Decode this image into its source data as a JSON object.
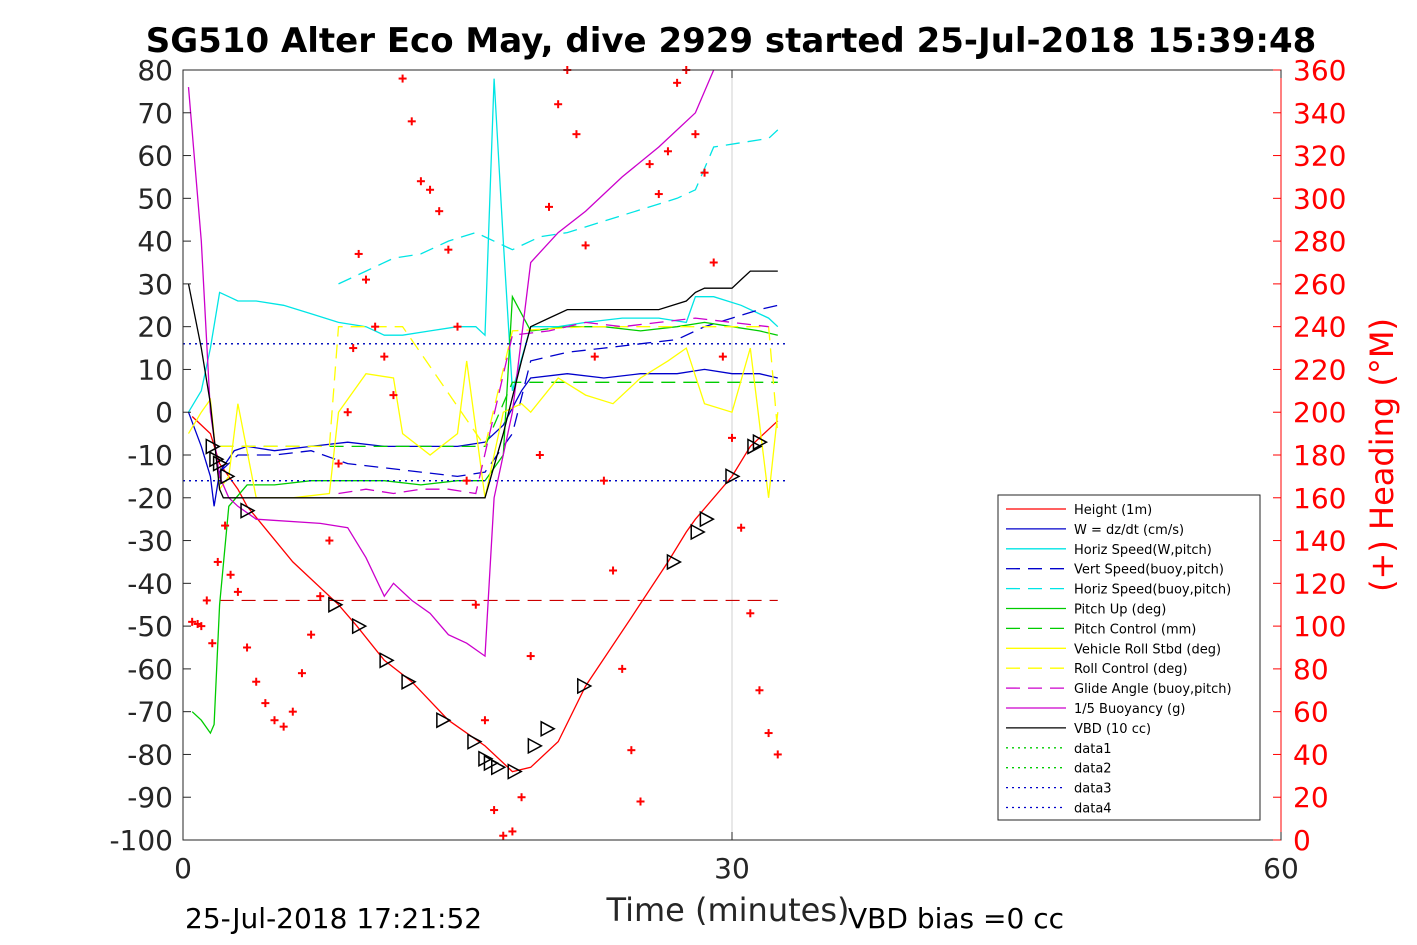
{
  "chart_data": {
    "type": "line",
    "title": "SG510 Alter Eco May, dive 2929 started 25-Jul-2018 15:39:48",
    "xlabel": "Time (minutes)",
    "ylabel_right": "(+) Heading (°M)",
    "xlim": [
      0,
      60
    ],
    "ylim": [
      -100,
      80
    ],
    "ylim_right": [
      0,
      360
    ],
    "x_ticks": [
      "0",
      "30",
      "60"
    ],
    "y_ticks": [
      "80",
      "70",
      "60",
      "50",
      "40",
      "30",
      "20",
      "10",
      "0",
      "-10",
      "-20",
      "-30",
      "-40",
      "-50",
      "-60",
      "-70",
      "-80",
      "-90",
      "-100"
    ],
    "y_ticks_right": [
      "360",
      "340",
      "320",
      "300",
      "280",
      "260",
      "240",
      "220",
      "200",
      "180",
      "160",
      "140",
      "120",
      "100",
      "80",
      "60",
      "40",
      "20",
      "0"
    ],
    "grid": "x-only at 30",
    "legend_position": "bottom-right",
    "footer_left": "25-Jul-2018 17:21:52",
    "footer_right": "VBD bias =0 cc",
    "legend": [
      {
        "name": "Height (1m)",
        "color": "#ff0000",
        "style": "solid"
      },
      {
        "name": "W = dz/dt (cm/s)",
        "color": "#0000cc",
        "style": "solid"
      },
      {
        "name": "Horiz Speed(W,pitch)",
        "color": "#00e5e5",
        "style": "solid"
      },
      {
        "name": "Vert Speed(buoy,pitch)",
        "color": "#0000cc",
        "style": "dashed"
      },
      {
        "name": "Horiz Speed(buoy,pitch)",
        "color": "#00e5e5",
        "style": "dashed"
      },
      {
        "name": "Pitch Up (deg)",
        "color": "#00cc00",
        "style": "solid"
      },
      {
        "name": "Pitch Control (mm)",
        "color": "#00cc00",
        "style": "dashed"
      },
      {
        "name": "Vehicle Roll Stbd (deg)",
        "color": "#ffff00",
        "style": "solid"
      },
      {
        "name": "Roll Control (deg)",
        "color": "#ffff00",
        "style": "dashed"
      },
      {
        "name": "Glide Angle (buoy,pitch)",
        "color": "#cc00cc",
        "style": "dashed"
      },
      {
        "name": "1/5 Buoyancy (g)",
        "color": "#cc00cc",
        "style": "solid"
      },
      {
        "name": "VBD (10 cc)",
        "color": "#000000",
        "style": "solid"
      },
      {
        "name": "data1",
        "color": "#00cc00",
        "style": "dotted"
      },
      {
        "name": "data2",
        "color": "#00cc00",
        "style": "dotted"
      },
      {
        "name": "data3",
        "color": "#0000cc",
        "style": "dotted"
      },
      {
        "name": "data4",
        "color": "#0000cc",
        "style": "dotted"
      }
    ],
    "series": [
      {
        "name": "Height (1m)",
        "color": "#ff0000",
        "style": "solid",
        "x": [
          0.5,
          1.5,
          2.0,
          3.0,
          3.5,
          6.0,
          8.5,
          9.5,
          11.0,
          12.5,
          14.5,
          16.5,
          17.5,
          18.0,
          19.0,
          20.5,
          22.0,
          24.5,
          26.5,
          27.5,
          28.0,
          30.0,
          31.0,
          32.5
        ],
        "y": [
          -1,
          -5,
          -12,
          -18,
          -22,
          -35,
          -45,
          -50,
          -58,
          -63,
          -72,
          -78,
          -82,
          -84,
          -83,
          -77,
          -64,
          -48,
          -35,
          -28,
          -25,
          -15,
          -8,
          -2
        ]
      },
      {
        "name": "W = dz/dt (cm/s)",
        "color": "#0000cc",
        "style": "solid",
        "x": [
          0.3,
          1.0,
          1.5,
          1.7,
          2.0,
          2.8,
          3.5,
          5.0,
          7.0,
          9.0,
          11.0,
          13.0,
          15.0,
          16.5,
          17.5,
          18.5,
          19.0,
          21.0,
          23.0,
          25.0,
          27.0,
          28.5,
          30.0,
          31.5,
          32.5
        ],
        "y": [
          0,
          -8,
          -15,
          -22,
          -14,
          -9,
          -8,
          -9,
          -8,
          -7,
          -8,
          -8,
          -8,
          -7,
          -3,
          5,
          8,
          9,
          8,
          9,
          9,
          10,
          9,
          9,
          8
        ]
      },
      {
        "name": "Horiz Speed(W,pitch)",
        "color": "#00e5e5",
        "style": "solid",
        "x": [
          0.3,
          1.0,
          1.5,
          2.0,
          2.5,
          3.0,
          4.0,
          5.5,
          7.0,
          8.5,
          10.0,
          11.0,
          12.0,
          13.5,
          15.0,
          16.0,
          16.5,
          17.0,
          17.5,
          18.0,
          19.0,
          20.5,
          22.0,
          24.0,
          26.0,
          27.5,
          28.0,
          29.0,
          30.5,
          32.0,
          32.5
        ],
        "y": [
          0,
          5,
          15,
          28,
          27,
          26,
          26,
          25,
          23,
          21,
          20,
          18,
          18,
          19,
          20,
          20,
          18,
          78,
          40,
          5,
          20,
          20,
          21,
          22,
          22,
          21,
          27,
          27,
          25,
          22,
          20
        ]
      },
      {
        "name": "Vert Speed(buoy,pitch)",
        "color": "#0000cc",
        "style": "dashed",
        "x": [
          2.0,
          3.0,
          5.0,
          7.0,
          9.0,
          11.0,
          13.0,
          15.0,
          16.5,
          18.0,
          19.0,
          21.0,
          23.0,
          25.0,
          27.0,
          28.5,
          30.0,
          31.5,
          32.5
        ],
        "y": [
          -14,
          -10,
          -10,
          -9,
          -12,
          -13,
          -14,
          -15,
          -14,
          -5,
          12,
          14,
          15,
          16,
          17,
          20,
          22,
          24,
          25
        ]
      },
      {
        "name": "Horiz Speed(buoy,pitch)",
        "color": "#00e5e5",
        "style": "dashed",
        "x": [
          8.5,
          10.0,
          11.5,
          13.0,
          14.5,
          16.0,
          18.0,
          19.5,
          21.0,
          22.5,
          24.0,
          25.5,
          27.0,
          28.0,
          29.0,
          30.5,
          32.0,
          32.5
        ],
        "y": [
          30,
          33,
          36,
          37,
          40,
          42,
          38,
          41,
          42,
          44,
          46,
          48,
          50,
          52,
          62,
          63,
          64,
          66
        ]
      },
      {
        "name": "Pitch Up (deg)",
        "color": "#00cc00",
        "style": "solid",
        "x": [
          0.5,
          1.0,
          1.5,
          1.7,
          2.0,
          2.5,
          3.5,
          5.0,
          7.0,
          9.0,
          11.0,
          13.0,
          15.0,
          16.5,
          17.5,
          18.0,
          19.0,
          21.0,
          23.0,
          25.0,
          27.0,
          28.5,
          30.0,
          31.5,
          32.5
        ],
        "y": [
          -70,
          -72,
          -75,
          -73,
          -45,
          -22,
          -17,
          -17,
          -16,
          -16,
          -16,
          -17,
          -16,
          -16,
          -10,
          27,
          19,
          20,
          20,
          19,
          20,
          21,
          20,
          19,
          18
        ]
      },
      {
        "name": "Pitch Control (mm)",
        "color": "#00cc00",
        "style": "dashed",
        "x": [
          2.0,
          4.0,
          8.0,
          12.0,
          16.5,
          18.0,
          20.0,
          24.0,
          28.0,
          32.5
        ],
        "y": [
          -8,
          -8,
          -8,
          -8,
          -8,
          7,
          7,
          7,
          7,
          7
        ]
      },
      {
        "name": "Vehicle Roll Stbd (deg)",
        "color": "#ffff00",
        "style": "solid",
        "x": [
          0.3,
          1.0,
          1.5,
          2.0,
          2.5,
          3.0,
          4.0,
          6.0,
          8.0,
          8.5,
          10.0,
          11.5,
          12.0,
          13.5,
          15.0,
          15.5,
          16.5,
          17.0,
          17.5,
          18.5,
          19.0,
          20.5,
          22.0,
          23.5,
          25.0,
          26.5,
          27.5,
          28.5,
          30.0,
          31.0,
          32.0,
          32.5
        ],
        "y": [
          -5,
          0,
          3,
          -18,
          -15,
          2,
          -20,
          -20,
          -19,
          0,
          9,
          8,
          -5,
          -10,
          -5,
          12,
          -20,
          -10,
          0,
          2,
          0,
          8,
          4,
          2,
          8,
          12,
          15,
          2,
          0,
          15,
          -20,
          0
        ]
      },
      {
        "name": "Roll Control (deg)",
        "color": "#ffff00",
        "style": "dashed",
        "x": [
          2.0,
          8.0,
          8.5,
          12.0,
          16.5,
          18.0,
          22.0,
          26.0,
          28.0,
          32.0,
          32.5
        ],
        "y": [
          -8,
          -8,
          20,
          20,
          -8,
          19,
          20,
          20,
          20,
          20,
          -5
        ]
      },
      {
        "name": "Glide Angle (buoy,pitch)",
        "color": "#cc00cc",
        "style": "dashed",
        "x": [
          8.5,
          10.0,
          11.5,
          13.0,
          14.5,
          16.0,
          18.0,
          20.0,
          22.0,
          24.0,
          26.0,
          28.0,
          30.0,
          32.0
        ],
        "y": [
          -19,
          -18,
          -19,
          -18,
          -18,
          -19,
          18,
          19,
          21,
          20,
          21,
          22,
          21,
          20
        ]
      },
      {
        "name": "1/5 Buoyancy (g)",
        "color": "#cc00cc",
        "style": "solid",
        "x": [
          0.3,
          1.0,
          1.5,
          2.0,
          2.5,
          3.0,
          4.0,
          7.5,
          9.0,
          10.0,
          11.0,
          11.5,
          12.5,
          13.5,
          14.5,
          15.5,
          16.5,
          17.0,
          18.0,
          19.0,
          20.5,
          22.0,
          24.0,
          26.0,
          28.0,
          29.0
        ],
        "y": [
          76,
          40,
          0,
          -15,
          -20,
          -22,
          -25,
          -26,
          -27,
          -34,
          -43,
          -40,
          -44,
          -47,
          -52,
          -54,
          -57,
          -20,
          0,
          35,
          42,
          47,
          55,
          62,
          70,
          80
        ]
      },
      {
        "name": "VBD (10 cc)",
        "color": "#000000",
        "style": "solid",
        "x": [
          0.3,
          1.0,
          1.5,
          1.8,
          2.0,
          2.2,
          3.0,
          5.0,
          7.0,
          9.0,
          11.0,
          13.0,
          15.0,
          16.5,
          17.5,
          18.5,
          19.0,
          20.0,
          21.0,
          22.0,
          24.0,
          26.0,
          27.5,
          28.0,
          28.5,
          30.0,
          30.5,
          31.0,
          32.5
        ],
        "y": [
          30,
          15,
          2,
          -10,
          -18,
          -20,
          -20,
          -20,
          -20,
          -20,
          -20,
          -20,
          -20,
          -20,
          -5,
          12,
          20,
          22,
          24,
          24,
          24,
          24,
          26,
          28,
          29,
          29,
          31,
          33,
          33
        ]
      },
      {
        "name": "data1",
        "color": "#00cc00",
        "style": "dotted",
        "x": [
          0,
          33
        ],
        "y": [
          16,
          16
        ]
      },
      {
        "name": "data2",
        "color": "#00cc00",
        "style": "dotted",
        "x": [
          0,
          33
        ],
        "y": [
          -16,
          -16
        ]
      },
      {
        "name": "data3",
        "color": "#0000cc",
        "style": "dotted",
        "x": [
          0,
          33
        ],
        "y": [
          16,
          16
        ]
      },
      {
        "name": "data4",
        "color": "#0000cc",
        "style": "dotted",
        "x": [
          0,
          33
        ],
        "y": [
          -16,
          -16
        ]
      }
    ],
    "reference_lines": [
      {
        "color": "#cc0000",
        "style": "dashed",
        "x": [
          2.0,
          32.5
        ],
        "y": [
          -44,
          -44
        ]
      }
    ],
    "heading_points": {
      "name": "(+) Heading (°M)",
      "color": "#ff0000",
      "x": [
        0.5,
        0.8,
        1.0,
        1.3,
        1.6,
        1.9,
        2.3,
        2.6,
        3.0,
        3.5,
        4.0,
        4.5,
        5.0,
        5.5,
        6.0,
        6.5,
        7.0,
        7.5,
        8.0,
        8.5,
        9.0,
        9.3,
        9.6,
        10.0,
        10.5,
        11.0,
        11.5,
        12.0,
        12.5,
        13.0,
        13.5,
        14.0,
        14.5,
        15.0,
        15.5,
        16.0,
        16.5,
        17.0,
        17.5,
        18.0,
        18.5,
        19.0,
        19.5,
        20.0,
        20.5,
        21.0,
        21.5,
        22.0,
        22.5,
        23.0,
        23.5,
        24.0,
        24.5,
        25.0,
        25.5,
        26.0,
        26.5,
        27.0,
        27.5,
        28.0,
        28.5,
        29.0,
        29.5,
        30.0,
        30.5,
        31.0,
        31.5,
        32.0,
        32.5
      ],
      "y": [
        102,
        101,
        100,
        112,
        92,
        130,
        147,
        124,
        116,
        90,
        74,
        64,
        56,
        53,
        60,
        78,
        96,
        114,
        140,
        176,
        200,
        230,
        274,
        262,
        240,
        226,
        208,
        356,
        336,
        308,
        304,
        294,
        276,
        240,
        168,
        110,
        56,
        14,
        2,
        4,
        20,
        86,
        180,
        296,
        344,
        374,
        330,
        278,
        226,
        168,
        126,
        80,
        42,
        18,
        316,
        302,
        322,
        354,
        372,
        330,
        312,
        270,
        226,
        188,
        146,
        106,
        70,
        50,
        40
      ]
    },
    "markers": {
      "shape": "triangle",
      "color": "#000000",
      "x": [
        1.6,
        1.8,
        2.0,
        2.4,
        3.5,
        8.3,
        9.6,
        11.1,
        12.3,
        14.2,
        15.9,
        16.5,
        16.8,
        17.2,
        18.1,
        19.2,
        19.9,
        21.9,
        26.8,
        28.1,
        28.6,
        30.0,
        31.2,
        31.5
      ],
      "y": [
        -8,
        -11,
        -12,
        -15,
        -23,
        -45,
        -50,
        -58,
        -63,
        -72,
        -77,
        -81,
        -82,
        -83,
        -84,
        -78,
        -74,
        -64,
        -35,
        -28,
        -25,
        -15,
        -8,
        -7
      ]
    }
  }
}
